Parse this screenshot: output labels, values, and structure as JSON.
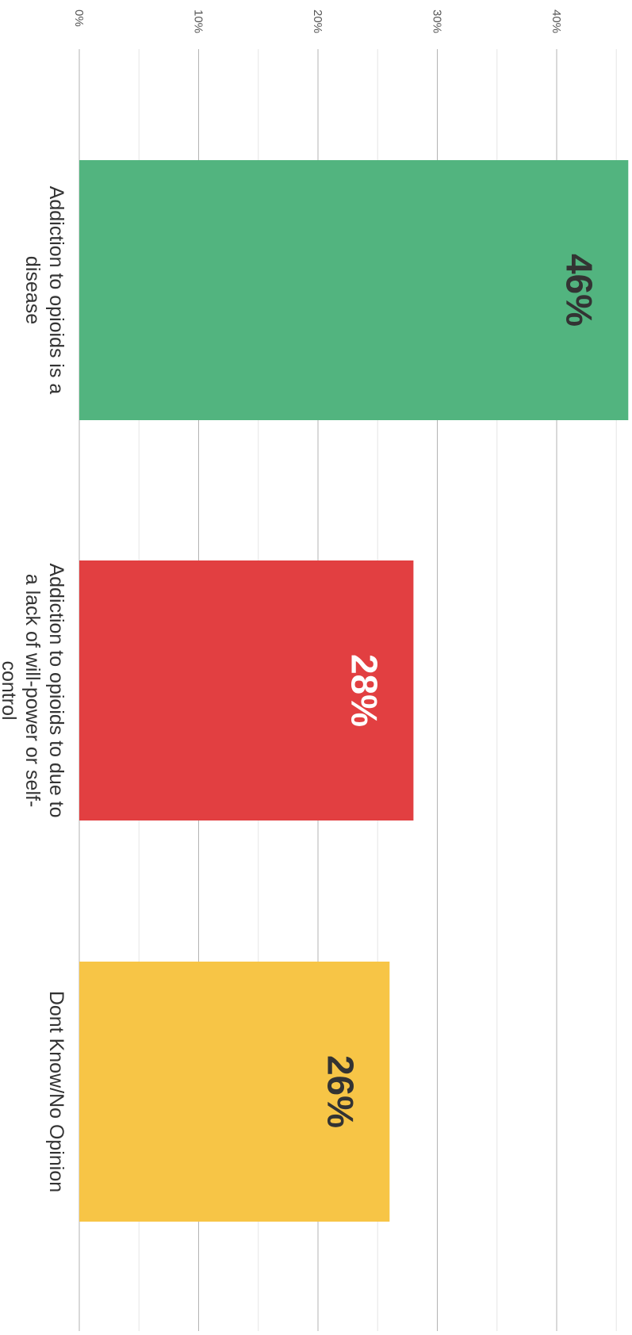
{
  "chart_data": {
    "type": "bar",
    "orientation": "horizontal",
    "categories": [
      "Addiction to opioids is a disease",
      "Addiction to opioids to due to a lack of will-power or self-control",
      "Dont Know/No Opinion"
    ],
    "category_label_lines": [
      [
        "Addiction to opioids is a",
        "disease"
      ],
      [
        "Addiction to opioids to due to",
        "a lack of will-power or self-",
        "control"
      ],
      [
        "Dont Know/No Opinion"
      ]
    ],
    "values": [
      46,
      28,
      26
    ],
    "value_labels": [
      "46%",
      "28%",
      "26%"
    ],
    "colors": [
      "#52B47F",
      "#E23F41",
      "#F7C546"
    ],
    "value_label_colors": [
      "#333333",
      "#ffffff",
      "#333333"
    ],
    "xlim": [
      0,
      46
    ],
    "ticks": [
      0,
      10,
      20,
      30,
      40
    ],
    "tick_labels": [
      "0%",
      "10%",
      "20%",
      "30%",
      "40%"
    ],
    "minor_ticks": [
      5,
      15,
      25,
      35,
      45
    ],
    "grid": true,
    "title": "",
    "xlabel": "",
    "ylabel": ""
  }
}
